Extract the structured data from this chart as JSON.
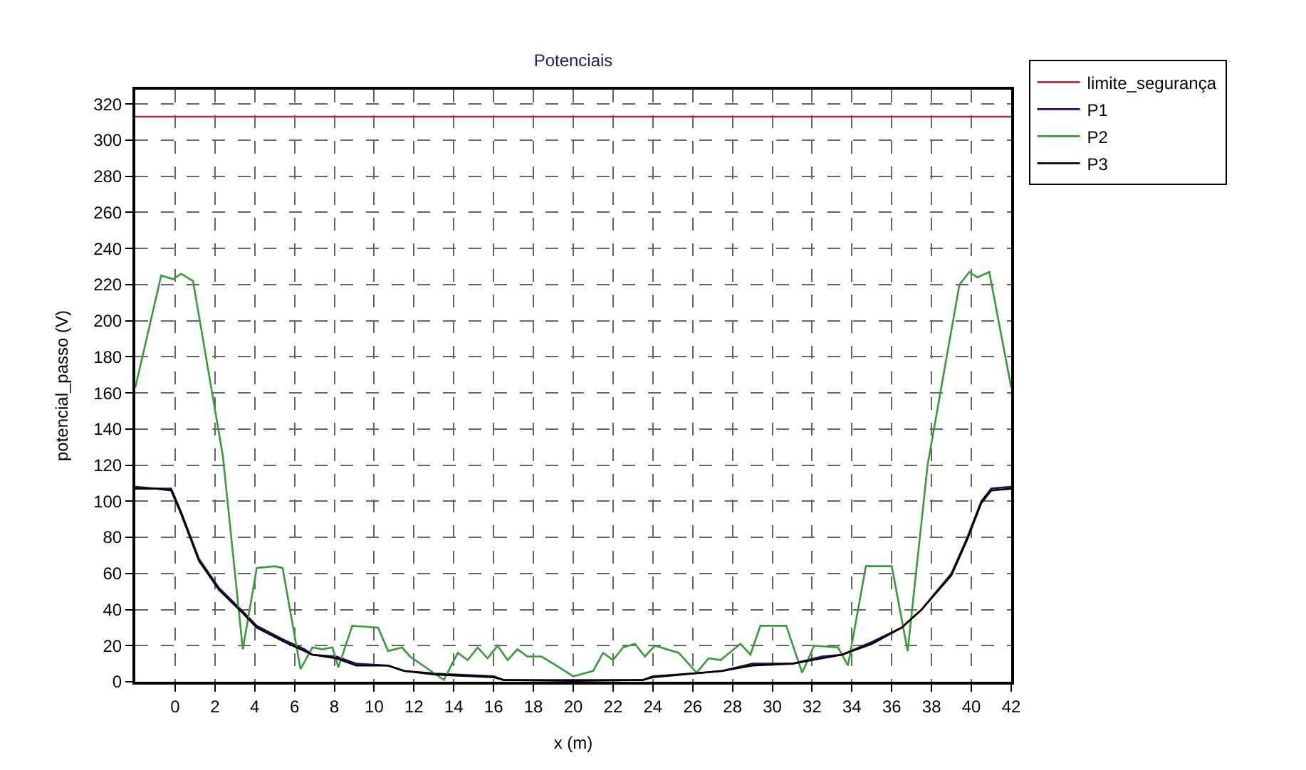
{
  "chart_data": {
    "type": "line",
    "title": "Potenciais",
    "xlabel": "x (m)",
    "ylabel": "potencial_passo (V)",
    "xlim": [
      -2,
      42
    ],
    "xticks": [
      0,
      2,
      4,
      6,
      8,
      10,
      12,
      14,
      16,
      18,
      20,
      22,
      24,
      26,
      28,
      30,
      32,
      34,
      36,
      38,
      40,
      42
    ],
    "ylim": [
      0,
      328
    ],
    "yticks": [
      0,
      20,
      40,
      60,
      80,
      100,
      120,
      140,
      160,
      180,
      200,
      220,
      240,
      260,
      280,
      300,
      320
    ],
    "grid": true,
    "legend": "top right",
    "marker": "none",
    "line_style": "solid",
    "series": [
      {
        "name": "limite_segurança",
        "color": "#b03040",
        "x": [
          -2,
          42
        ],
        "values": [
          313,
          313
        ]
      },
      {
        "name": "P1",
        "color": "#2a0a5a",
        "x": [
          -2,
          -1,
          -0.2,
          0.3,
          1.2,
          2.2,
          3.4,
          4.1,
          5.5,
          6.5,
          6.9,
          8.1,
          9.1,
          10.7,
          11.5,
          13.1,
          16,
          16.5,
          20,
          23.5,
          24,
          26.5,
          27.5,
          29,
          31,
          32.5,
          33.5,
          35,
          36.5,
          37.5,
          39,
          39.8,
          40.5,
          41,
          42
        ],
        "values": [
          108,
          107,
          107,
          94,
          68,
          52,
          39,
          31,
          23,
          18,
          15,
          14,
          10,
          9,
          6,
          4.5,
          3,
          1,
          1,
          1,
          3,
          5,
          6,
          10,
          10,
          14,
          15,
          22,
          30,
          40,
          60,
          80,
          100,
          107,
          108
        ]
      },
      {
        "name": "P2",
        "color": "#3a9a3a",
        "x": [
          -2,
          -0.7,
          -0.1,
          0.3,
          0.9,
          2.4,
          3.4,
          4.1,
          5,
          5.4,
          6.3,
          6.9,
          7.4,
          7.9,
          8.2,
          8.9,
          10.2,
          10.7,
          11.4,
          11.8,
          13.5,
          14.2,
          14.7,
          15.2,
          15.7,
          16.2,
          16.7,
          17.2,
          17.7,
          18.4,
          19,
          20,
          21,
          21.5,
          22,
          22.5,
          23.1,
          23.6,
          24.1,
          25.3,
          26.2,
          26.8,
          27.4,
          28.4,
          28.9,
          29.4,
          30.7,
          31.5,
          32.1,
          33.3,
          33.8,
          34.7,
          36,
          36.8,
          37.8,
          39.4,
          39.9,
          40.3,
          40.9,
          42
        ],
        "values": [
          163,
          225,
          223,
          226,
          222,
          125,
          18,
          63,
          64,
          63,
          7,
          19,
          18,
          19,
          8,
          31,
          30,
          17,
          19,
          14,
          1,
          16,
          12,
          19,
          13,
          20,
          12,
          18,
          14,
          14,
          10,
          3,
          6,
          16,
          12,
          19,
          21,
          14,
          20,
          16,
          5,
          13,
          12,
          21,
          15,
          31,
          31,
          5,
          20,
          19,
          9,
          64,
          64,
          17,
          120,
          220,
          227,
          224,
          227,
          163
        ]
      },
      {
        "name": "P3",
        "color": "#000000",
        "x": [
          -2,
          -1,
          -0.2,
          0.3,
          1.2,
          2.2,
          3.4,
          4.1,
          5.5,
          6.5,
          6.9,
          8.1,
          9.1,
          10.7,
          11.5,
          13.1,
          16,
          16.5,
          20,
          23.5,
          24,
          26.5,
          27.5,
          29,
          31,
          32.5,
          33.5,
          35,
          36.5,
          37.5,
          39,
          39.8,
          40.5,
          41,
          42
        ],
        "values": [
          107,
          107,
          106,
          93,
          67,
          51,
          38,
          30,
          22,
          17,
          15,
          13,
          9,
          9,
          6,
          4,
          2.5,
          1,
          0.5,
          1,
          2.5,
          5,
          6,
          9,
          10,
          13,
          15,
          21,
          30,
          40,
          59,
          79,
          99,
          106,
          107
        ]
      }
    ]
  }
}
